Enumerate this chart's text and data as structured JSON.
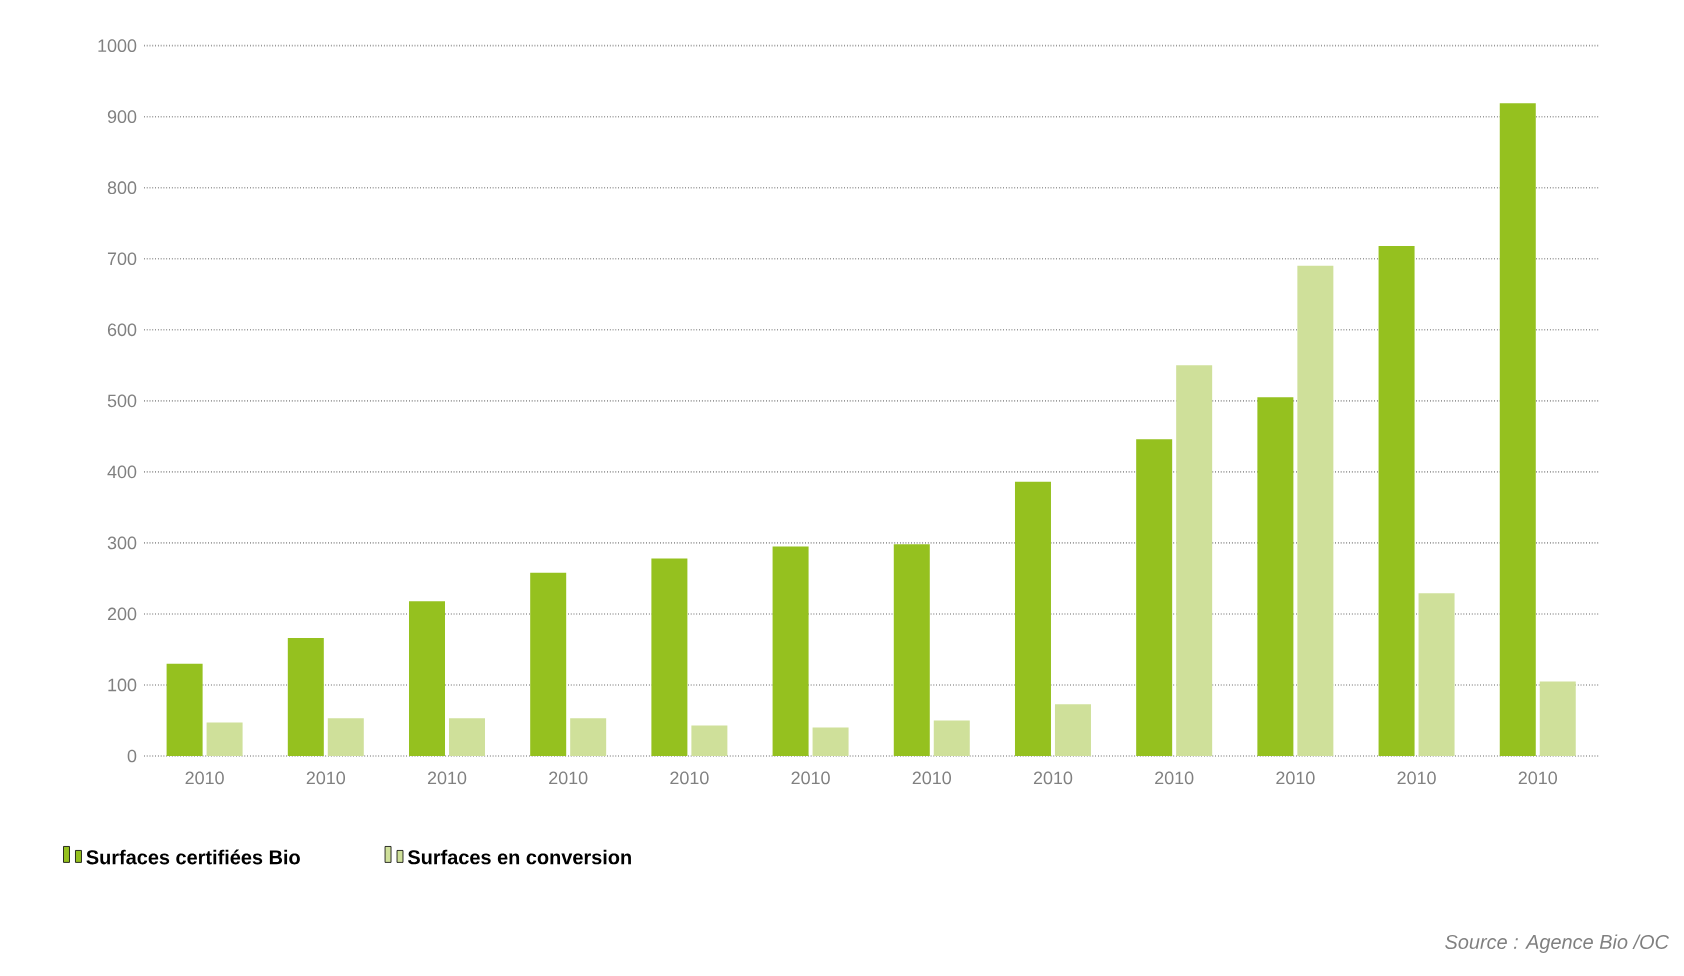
{
  "chart_data": {
    "type": "bar",
    "categories": [
      "2010",
      "2010",
      "2010",
      "2010",
      "2010",
      "2010",
      "2010",
      "2010",
      "2010",
      "2010",
      "2010",
      "2010"
    ],
    "series": [
      {
        "name": "Surfaces certifiées Bio",
        "color": "#95c11f",
        "values": [
          130,
          166,
          218,
          258,
          278,
          295,
          298,
          386,
          446,
          505,
          718,
          919
        ]
      },
      {
        "name": "Surfaces en conversion",
        "color": "#cfe09a",
        "values": [
          47,
          53,
          53,
          53,
          43,
          40,
          50,
          73,
          550,
          690,
          229,
          105
        ]
      }
    ],
    "ylim": [
      0,
      1000
    ],
    "yticks": [
      0,
      100,
      200,
      300,
      400,
      500,
      600,
      700,
      800,
      900,
      1000
    ],
    "grid": "y",
    "legend": "bottom",
    "annotations": [
      "Source : Agence Bio /OC"
    ]
  }
}
